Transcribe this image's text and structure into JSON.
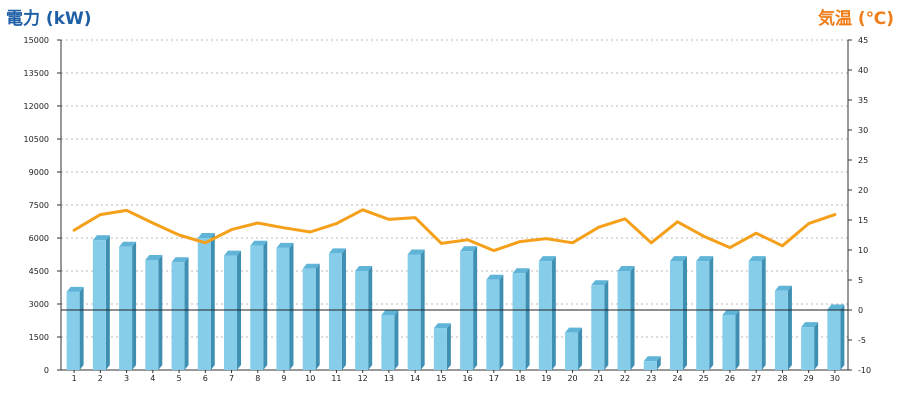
{
  "chart_data": {
    "type": "bar",
    "left_axis_label": "電力 (kW)",
    "right_axis_label": "気温 (℃)",
    "categories": [
      "1",
      "2",
      "3",
      "4",
      "5",
      "6",
      "7",
      "8",
      "9",
      "10",
      "11",
      "12",
      "13",
      "14",
      "15",
      "16",
      "17",
      "18",
      "19",
      "20",
      "21",
      "22",
      "23",
      "24",
      "25",
      "26",
      "27",
      "28",
      "29",
      "30"
    ],
    "series": [
      {
        "kind": "bar",
        "axis": "left",
        "color": "#86cdea",
        "values": [
          3550,
          5900,
          5600,
          5000,
          4900,
          6000,
          5200,
          5650,
          5550,
          4600,
          5300,
          4500,
          2500,
          5250,
          1900,
          5400,
          4100,
          4400,
          4950,
          1700,
          3850,
          4500,
          400,
          4950,
          4950,
          2500,
          4950,
          3600,
          1950,
          2750
        ]
      },
      {
        "kind": "line",
        "axis": "right",
        "color": "#f5a01a",
        "values": [
          13.3,
          15.9,
          16.6,
          14.5,
          12.5,
          11.2,
          13.4,
          14.5,
          13.7,
          13.0,
          14.4,
          16.7,
          15.1,
          15.4,
          11.1,
          11.7,
          9.9,
          11.4,
          11.9,
          11.2,
          13.8,
          15.2,
          11.2,
          14.7,
          12.3,
          10.4,
          12.8,
          10.7,
          14.4,
          15.9
        ]
      }
    ],
    "left_axis": {
      "min": 0,
      "max": 15000,
      "ticks": [
        0,
        1500,
        3000,
        4500,
        6000,
        7500,
        9000,
        10500,
        12000,
        13500,
        15000
      ]
    },
    "right_axis": {
      "min": -10,
      "max": 45,
      "ticks": [
        -10,
        -5,
        0,
        5,
        10,
        15,
        20,
        25,
        30,
        35,
        40,
        45
      ]
    },
    "reference_line": {
      "axis": "right",
      "value": 0
    },
    "grid": "horizontal-dotted",
    "legend": "none"
  }
}
